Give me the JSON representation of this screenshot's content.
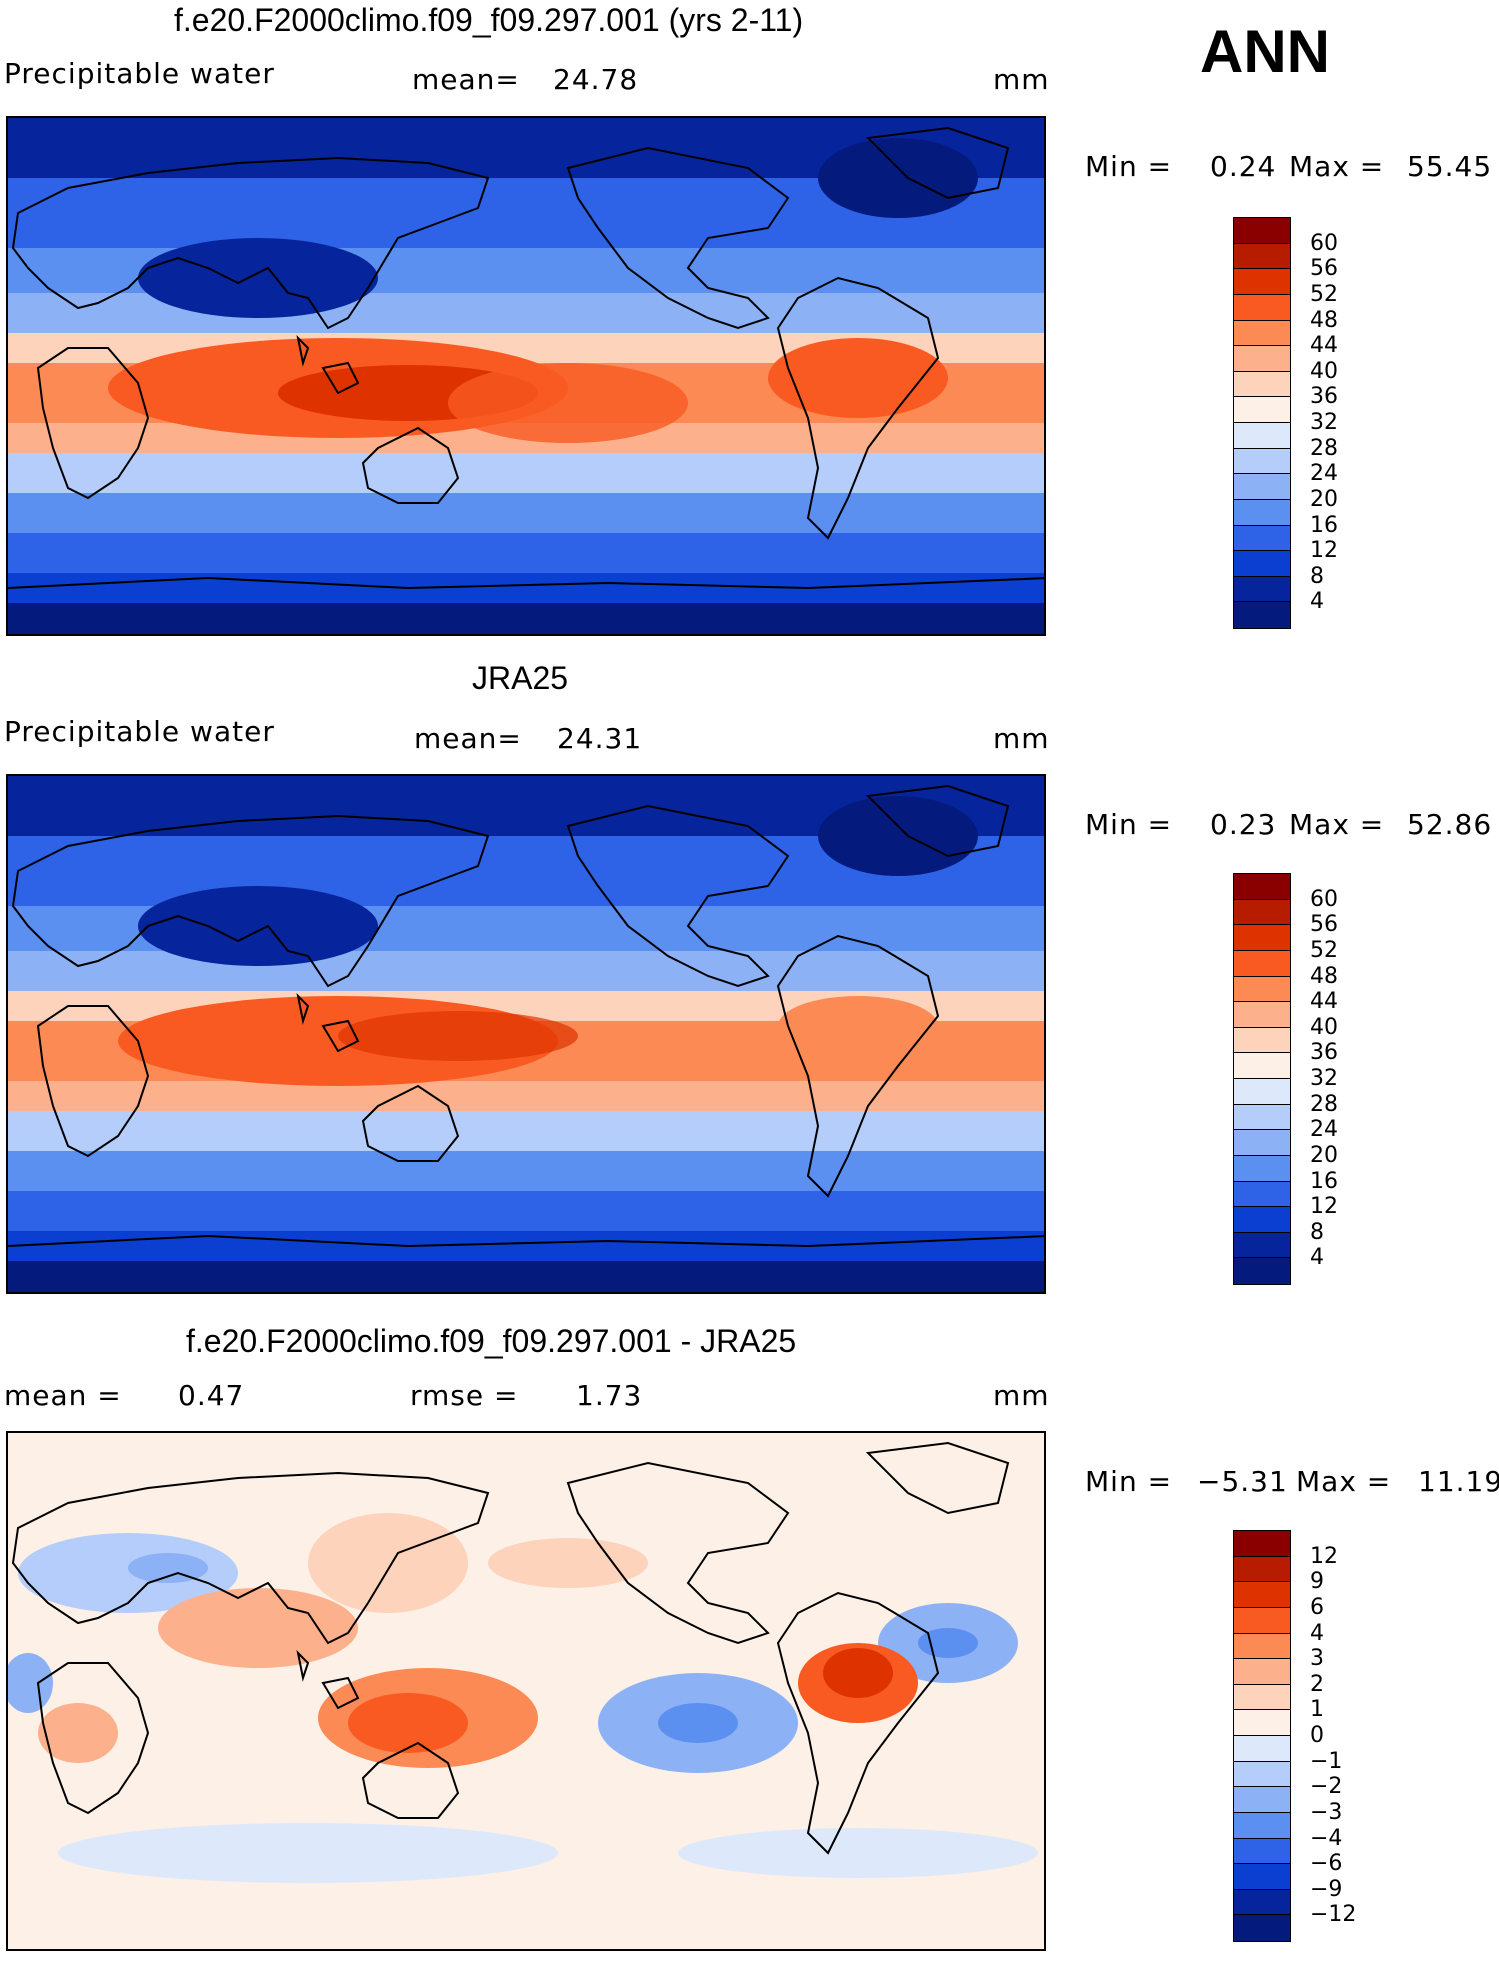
{
  "season": "ANN",
  "panels": [
    {
      "title": "f.e20.F2000climo.f09_f09.297.001 (yrs 2-11)",
      "variable": "Precipitable water",
      "stat_left_label": "",
      "stat_left_value": "",
      "stat_mid_label": "mean=",
      "stat_mid_value": "24.78",
      "units": "mm",
      "min_label": "Min =",
      "min_value": "0.24",
      "max_label": "Max =",
      "max_value": "55.45",
      "colorbar": {
        "labels": [
          "60",
          "56",
          "52",
          "48",
          "44",
          "40",
          "36",
          "32",
          "28",
          "24",
          "20",
          "16",
          "12",
          "8",
          "4"
        ],
        "colors": [
          "#8a0000",
          "#b81c00",
          "#de3300",
          "#f85a22",
          "#fb8a55",
          "#fdb08c",
          "#fdd3bb",
          "#fdf0e6",
          "#dde9fb",
          "#b5cdfb",
          "#8db1f5",
          "#5b8ff0",
          "#2e63e8",
          "#0b3fd1",
          "#06249c",
          "#041a7d"
        ]
      },
      "map_type": "absolute"
    },
    {
      "title": "JRA25",
      "variable": "Precipitable water",
      "stat_left_label": "",
      "stat_left_value": "",
      "stat_mid_label": "mean=",
      "stat_mid_value": "24.31",
      "units": "mm",
      "min_label": "Min =",
      "min_value": "0.23",
      "max_label": "Max =",
      "max_value": "52.86",
      "colorbar": {
        "labels": [
          "60",
          "56",
          "52",
          "48",
          "44",
          "40",
          "36",
          "32",
          "28",
          "24",
          "20",
          "16",
          "12",
          "8",
          "4"
        ],
        "colors": [
          "#8a0000",
          "#b81c00",
          "#de3300",
          "#f85a22",
          "#fb8a55",
          "#fdb08c",
          "#fdd3bb",
          "#fdf0e6",
          "#dde9fb",
          "#b5cdfb",
          "#8db1f5",
          "#5b8ff0",
          "#2e63e8",
          "#0b3fd1",
          "#06249c",
          "#041a7d"
        ]
      },
      "map_type": "absolute"
    },
    {
      "title": "f.e20.F2000climo.f09_f09.297.001 - JRA25",
      "variable": "",
      "stat_left_label": "mean =",
      "stat_left_value": "0.47",
      "stat_mid_label": "rmse =",
      "stat_mid_value": "1.73",
      "units": "mm",
      "min_label": "Min =",
      "min_value": "−5.31",
      "max_label": "Max =",
      "max_value": "11.19",
      "colorbar": {
        "labels": [
          "12",
          "9",
          "6",
          "4",
          "3",
          "2",
          "1",
          "0",
          "−1",
          "−2",
          "−3",
          "−4",
          "−6",
          "−9",
          "−12"
        ],
        "colors": [
          "#8a0000",
          "#b81c00",
          "#de3300",
          "#f85a22",
          "#fb8a55",
          "#fdb08c",
          "#fdd3bb",
          "#fdf0e6",
          "#dde9fb",
          "#b5cdfb",
          "#8db1f5",
          "#5b8ff0",
          "#2e63e8",
          "#0b3fd1",
          "#06249c",
          "#041a7d"
        ]
      },
      "map_type": "difference"
    }
  ]
}
